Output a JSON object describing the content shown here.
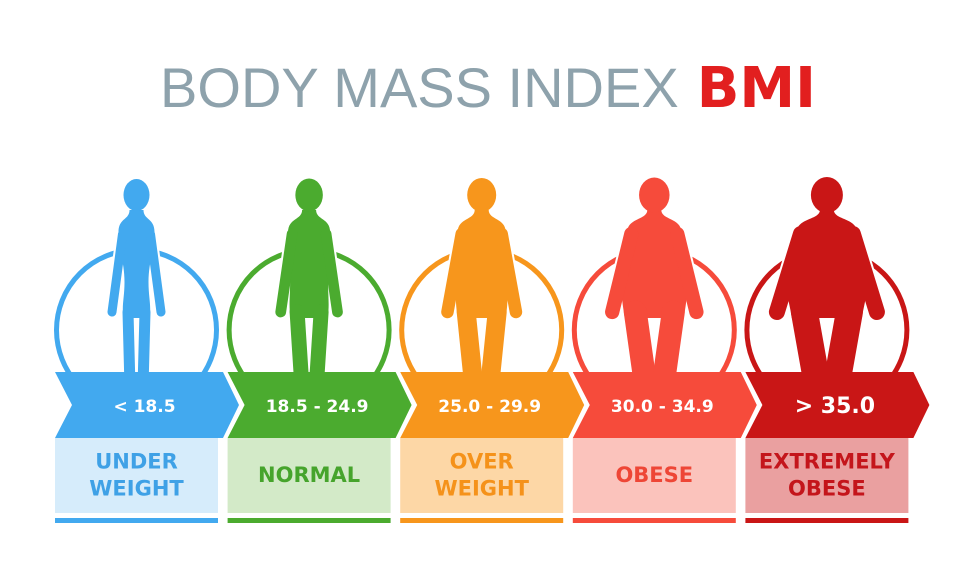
{
  "header": {
    "title": "BODY MASS INDEX",
    "highlight": "BMI"
  },
  "categories": [
    {
      "range": "< 18.5",
      "label": [
        "UNDER",
        "WEIGHT"
      ],
      "color": "#42a9ef",
      "light": "#d6ecfb",
      "text_color": "#3fa1e6"
    },
    {
      "range": "18.5 - 24.9",
      "label": [
        "NORMAL"
      ],
      "color": "#4bab2f",
      "light": "#d3eac8",
      "text_color": "#46a42c"
    },
    {
      "range": "25.0 - 29.9",
      "label": [
        "OVER",
        "WEIGHT"
      ],
      "color": "#f7961c",
      "light": "#fdd7a6",
      "text_color": "#f5921a"
    },
    {
      "range": "30.0 - 34.9",
      "label": [
        "OBESE"
      ],
      "color": "#f64b3b",
      "light": "#fbc3bc",
      "text_color": "#ee4636"
    },
    {
      "range": "> 35.0",
      "label": [
        "EXTREMELY",
        "OBESE"
      ],
      "color": "#c91616",
      "light": "#eaa0a0",
      "text_color": "#c4151b"
    }
  ]
}
